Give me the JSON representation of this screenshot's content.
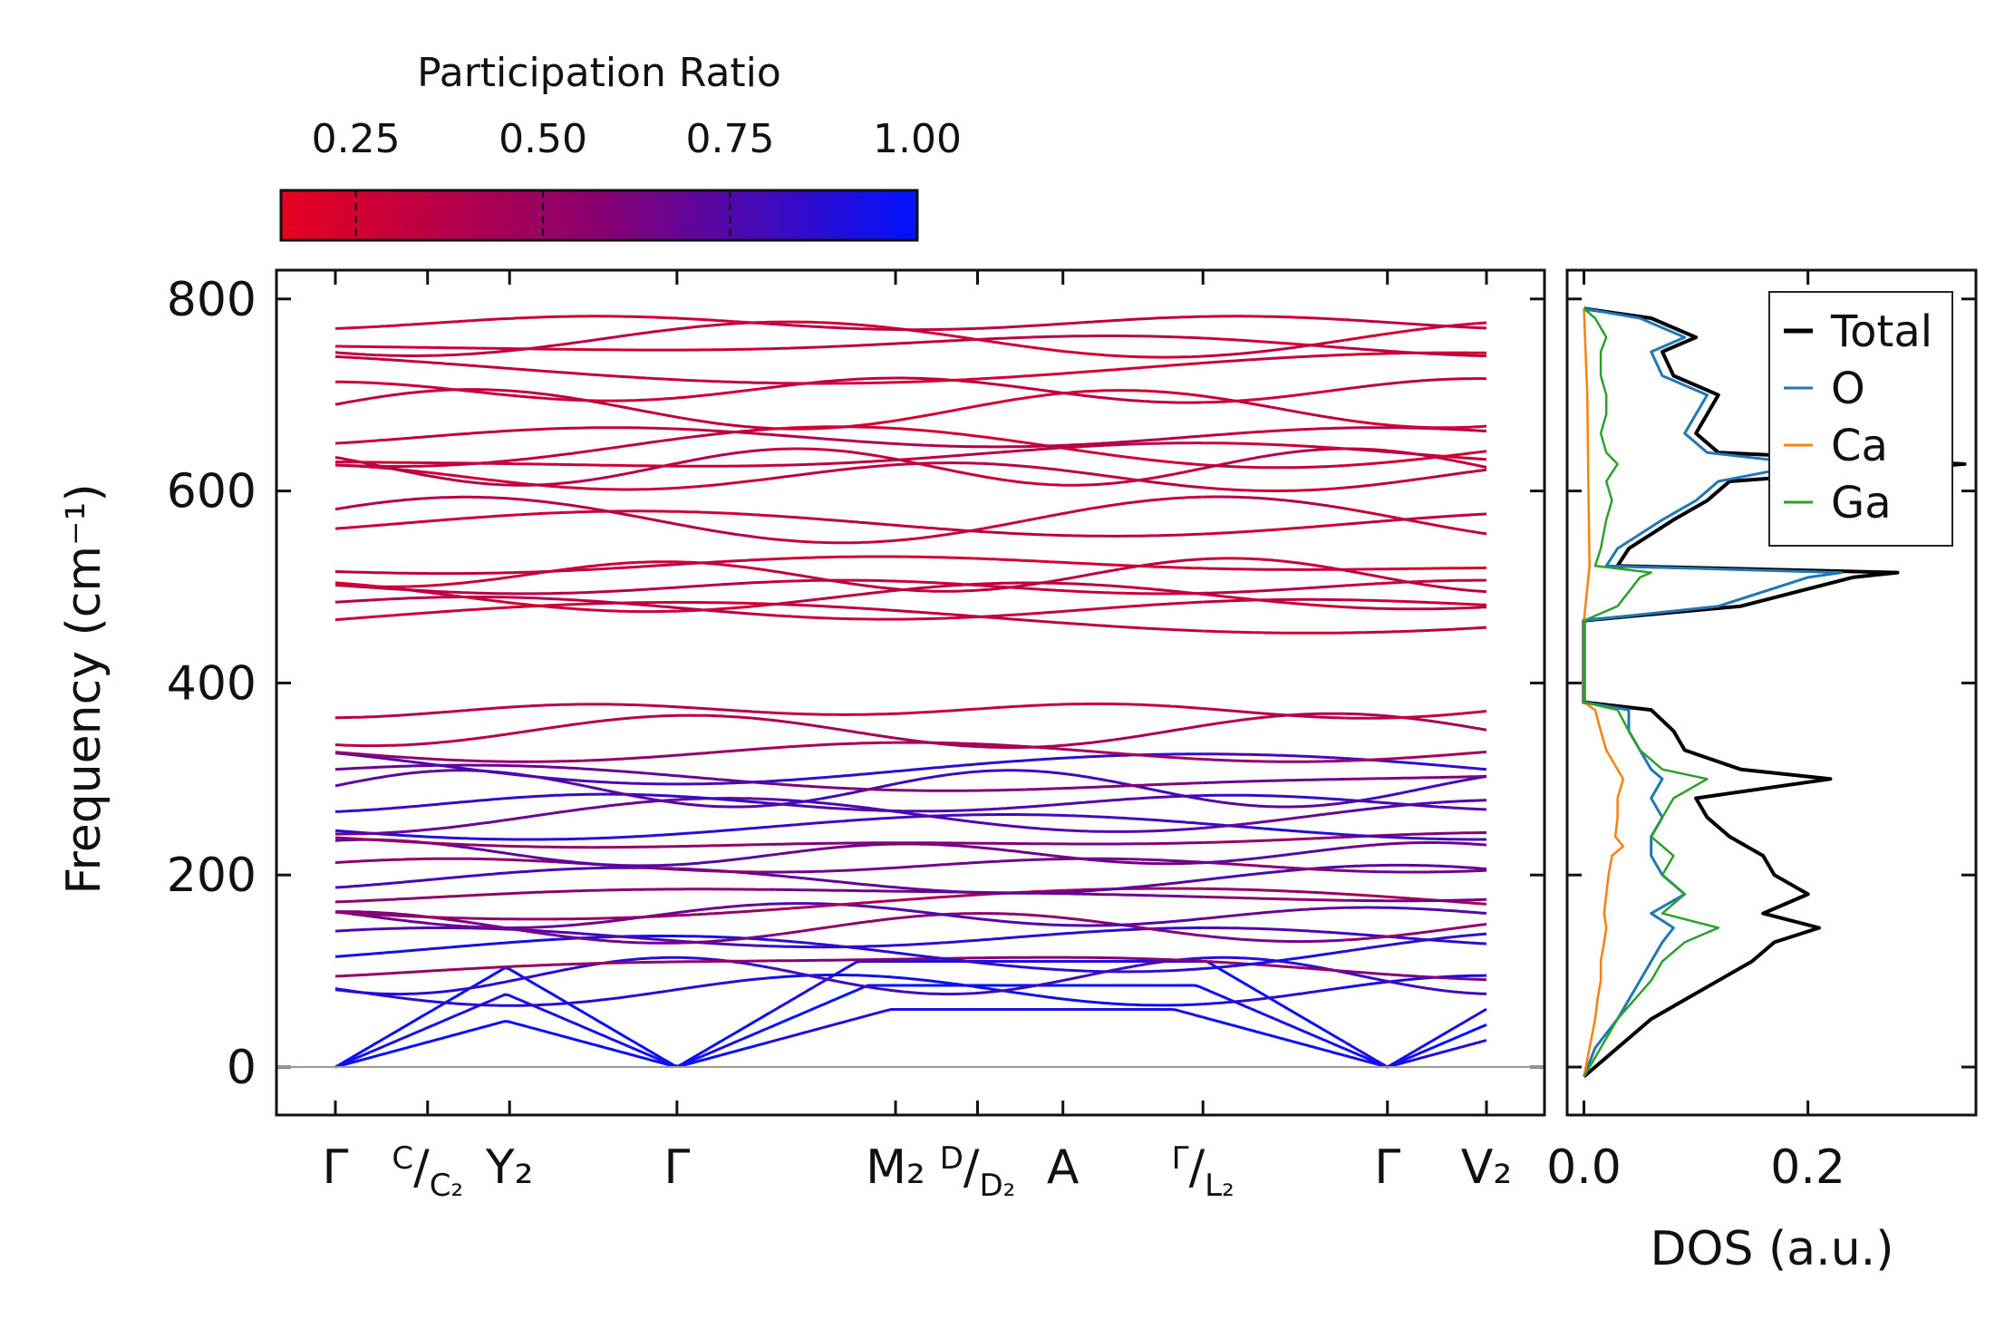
{
  "chart_data": [
    {
      "type": "line",
      "title": "",
      "ylabel": "Frequency (cm⁻¹)",
      "xlabel": "",
      "ylim": [
        -50,
        830
      ],
      "yticks": [
        0,
        200,
        400,
        600,
        800
      ],
      "high_symmetry_points": [
        {
          "x": 0.0,
          "label": "Γ"
        },
        {
          "x": 0.27,
          "label": "C/C₂"
        },
        {
          "x": 0.51,
          "label": "Y₂"
        },
        {
          "x": 1.0,
          "label": "Γ"
        },
        {
          "x": 1.64,
          "label": "M₂"
        },
        {
          "x": 1.88,
          "label": "D/D₂"
        },
        {
          "x": 2.13,
          "label": "A"
        },
        {
          "x": 2.54,
          "label": "Γ/L₂"
        },
        {
          "x": 3.08,
          "label": "Γ"
        },
        {
          "x": 3.37,
          "label": "V₂"
        }
      ],
      "path_break_at": 2.54,
      "colorbar": {
        "label": "Participation Ratio",
        "range": [
          0.15,
          1.0
        ],
        "ticks": [
          "0.25",
          "0.50",
          "0.75",
          "1.00"
        ],
        "tick_values": [
          0.25,
          0.5,
          0.75,
          1.0
        ],
        "colormap": [
          "#e8001f",
          "#8a0070",
          "#0012ff"
        ]
      },
      "bands_at_gamma": [
        {
          "freq": 0,
          "pr": 0.95
        },
        {
          "freq": 0,
          "pr": 0.95
        },
        {
          "freq": 0,
          "pr": 0.95
        },
        {
          "freq": 80,
          "pr": 0.9
        },
        {
          "freq": 95,
          "pr": 0.85
        },
        {
          "freq": 105,
          "pr": 0.55
        },
        {
          "freq": 120,
          "pr": 0.9
        },
        {
          "freq": 135,
          "pr": 0.8
        },
        {
          "freq": 145,
          "pr": 0.6
        },
        {
          "freq": 158,
          "pr": 0.7
        },
        {
          "freq": 170,
          "pr": 0.5
        },
        {
          "freq": 180,
          "pr": 0.6
        },
        {
          "freq": 195,
          "pr": 0.75
        },
        {
          "freq": 210,
          "pr": 0.6
        },
        {
          "freq": 222,
          "pr": 0.7
        },
        {
          "freq": 235,
          "pr": 0.55
        },
        {
          "freq": 250,
          "pr": 0.85
        },
        {
          "freq": 262,
          "pr": 0.7
        },
        {
          "freq": 275,
          "pr": 0.8
        },
        {
          "freq": 290,
          "pr": 0.75
        },
        {
          "freq": 300,
          "pr": 0.65
        },
        {
          "freq": 312,
          "pr": 0.8
        },
        {
          "freq": 328,
          "pr": 0.5
        },
        {
          "freq": 350,
          "pr": 0.4
        },
        {
          "freq": 372,
          "pr": 0.35
        },
        {
          "freq": 468,
          "pr": 0.3
        },
        {
          "freq": 478,
          "pr": 0.35
        },
        {
          "freq": 490,
          "pr": 0.3
        },
        {
          "freq": 500,
          "pr": 0.35
        },
        {
          "freq": 512,
          "pr": 0.3
        },
        {
          "freq": 522,
          "pr": 0.3
        },
        {
          "freq": 566,
          "pr": 0.3
        },
        {
          "freq": 570,
          "pr": 0.35
        },
        {
          "freq": 615,
          "pr": 0.3
        },
        {
          "freq": 625,
          "pr": 0.35
        },
        {
          "freq": 635,
          "pr": 0.3
        },
        {
          "freq": 645,
          "pr": 0.3
        },
        {
          "freq": 656,
          "pr": 0.35
        },
        {
          "freq": 685,
          "pr": 0.3
        },
        {
          "freq": 705,
          "pr": 0.3
        },
        {
          "freq": 728,
          "pr": 0.3
        },
        {
          "freq": 752,
          "pr": 0.3
        },
        {
          "freq": 758,
          "pr": 0.3
        },
        {
          "freq": 775,
          "pr": 0.3
        }
      ]
    },
    {
      "type": "line",
      "title": "",
      "xlabel": "DOS (a.u.)",
      "ylabel": "",
      "xlim": [
        -0.015,
        0.35
      ],
      "ylim": [
        -50,
        830
      ],
      "xticks": [
        "0.0",
        "0.2"
      ],
      "xtick_values": [
        0.0,
        0.2
      ],
      "legend": {
        "position": "top-right",
        "entries": [
          {
            "label": "Total",
            "color": "#000000"
          },
          {
            "label": "O",
            "color": "#1f77b4"
          },
          {
            "label": "Ca",
            "color": "#ff7f0e"
          },
          {
            "label": "Ga",
            "color": "#2ca02c"
          }
        ]
      },
      "series": [
        {
          "name": "Total",
          "color": "#000000",
          "freq": [
            -10,
            20,
            50,
            70,
            90,
            110,
            130,
            145,
            160,
            180,
            200,
            220,
            240,
            260,
            280,
            300,
            310,
            330,
            350,
            372,
            380,
            465,
            480,
            495,
            510,
            515,
            522,
            540,
            570,
            590,
            610,
            628,
            640,
            660,
            680,
            700,
            720,
            745,
            760,
            780,
            790
          ],
          "dos": [
            0,
            0.03,
            0.06,
            0.09,
            0.12,
            0.15,
            0.17,
            0.21,
            0.16,
            0.2,
            0.17,
            0.16,
            0.13,
            0.11,
            0.1,
            0.22,
            0.14,
            0.09,
            0.08,
            0.06,
            0,
            0,
            0.14,
            0.19,
            0.24,
            0.28,
            0.03,
            0.04,
            0.08,
            0.11,
            0.13,
            0.34,
            0.12,
            0.1,
            0.11,
            0.12,
            0.08,
            0.07,
            0.1,
            0.06,
            0
          ]
        },
        {
          "name": "O",
          "color": "#1f77b4",
          "freq": [
            -10,
            20,
            50,
            70,
            90,
            110,
            130,
            145,
            160,
            180,
            200,
            220,
            240,
            260,
            280,
            300,
            310,
            330,
            350,
            372,
            380,
            465,
            480,
            495,
            510,
            515,
            522,
            540,
            570,
            590,
            610,
            628,
            640,
            660,
            680,
            700,
            720,
            745,
            760,
            780,
            790
          ],
          "dos": [
            0,
            0.01,
            0.03,
            0.04,
            0.05,
            0.06,
            0.07,
            0.08,
            0.06,
            0.09,
            0.07,
            0.06,
            0.06,
            0.07,
            0.06,
            0.07,
            0.06,
            0.05,
            0.04,
            0.04,
            0,
            0,
            0.12,
            0.16,
            0.2,
            0.23,
            0.02,
            0.03,
            0.07,
            0.1,
            0.12,
            0.2,
            0.11,
            0.09,
            0.1,
            0.11,
            0.07,
            0.06,
            0.09,
            0.05,
            0
          ]
        },
        {
          "name": "Ca",
          "color": "#ff7f0e",
          "freq": [
            -10,
            20,
            50,
            70,
            90,
            110,
            130,
            145,
            160,
            180,
            200,
            220,
            230,
            240,
            260,
            280,
            300,
            310,
            330,
            350,
            372,
            380,
            465,
            522,
            600,
            700,
            790
          ],
          "dos": [
            0,
            0.005,
            0.01,
            0.012,
            0.015,
            0.015,
            0.018,
            0.02,
            0.018,
            0.02,
            0.022,
            0.025,
            0.035,
            0.028,
            0.03,
            0.03,
            0.035,
            0.03,
            0.02,
            0.015,
            0.01,
            0,
            0,
            0.005,
            0.004,
            0.003,
            0
          ]
        },
        {
          "name": "Ga",
          "color": "#2ca02c",
          "freq": [
            -10,
            20,
            50,
            70,
            90,
            110,
            130,
            145,
            160,
            180,
            200,
            220,
            240,
            260,
            280,
            300,
            310,
            330,
            350,
            372,
            380,
            465,
            480,
            495,
            510,
            515,
            522,
            540,
            570,
            590,
            610,
            628,
            640,
            660,
            680,
            700,
            720,
            745,
            760,
            780,
            790
          ],
          "dos": [
            0,
            0.015,
            0.03,
            0.045,
            0.06,
            0.07,
            0.09,
            0.12,
            0.07,
            0.09,
            0.07,
            0.08,
            0.06,
            0.07,
            0.08,
            0.11,
            0.07,
            0.05,
            0.04,
            0.03,
            0,
            0,
            0.03,
            0.04,
            0.05,
            0.06,
            0.01,
            0.015,
            0.02,
            0.025,
            0.02,
            0.03,
            0.02,
            0.015,
            0.02,
            0.02,
            0.015,
            0.015,
            0.02,
            0.01,
            0
          ]
        }
      ]
    }
  ]
}
